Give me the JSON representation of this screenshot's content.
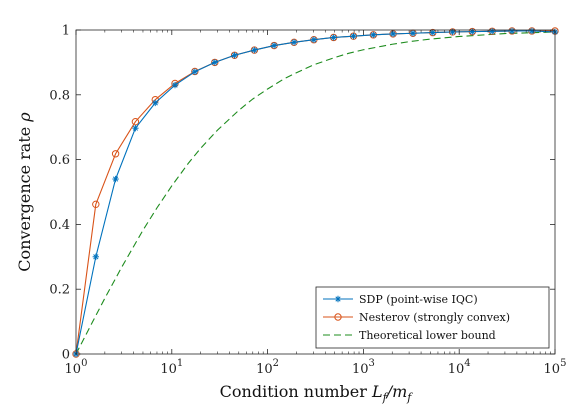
{
  "chart_data": {
    "type": "line",
    "xlabel_text": "Condition number ",
    "xlabel_math": "L",
    "xlabel_sub1": "f",
    "xlabel_slash": "/m",
    "xlabel_sub2": "f",
    "ylabel_text": "Convergence rate ",
    "ylabel_math": "ρ",
    "x_scale": "log",
    "xlim": [
      1,
      100000
    ],
    "ylim": [
      0,
      1
    ],
    "x_ticks": [
      {
        "value": 1,
        "base": "10",
        "exp": "0"
      },
      {
        "value": 10,
        "base": "10",
        "exp": "1"
      },
      {
        "value": 100,
        "base": "10",
        "exp": "2"
      },
      {
        "value": 1000,
        "base": "10",
        "exp": "3"
      },
      {
        "value": 10000,
        "base": "10",
        "exp": "4"
      },
      {
        "value": 100000,
        "base": "10",
        "exp": "5"
      }
    ],
    "y_ticks": [
      {
        "value": 0,
        "label": "0"
      },
      {
        "value": 0.2,
        "label": "0.2"
      },
      {
        "value": 0.4,
        "label": "0.4"
      },
      {
        "value": 0.6,
        "label": "0.6"
      },
      {
        "value": 0.8,
        "label": "0.8"
      },
      {
        "value": 1,
        "label": "1"
      }
    ],
    "legend_position": "bottom-right",
    "grid": false,
    "series": [
      {
        "name": "SDP (point-wise IQC)",
        "color": "#0072BD",
        "marker": "asterisk",
        "line": "solid",
        "x": [
          1,
          1.61,
          2.59,
          4.17,
          6.72,
          10.8,
          17.4,
          28.1,
          45.2,
          72.8,
          117,
          189,
          304,
          489,
          788,
          1270,
          2040,
          3290,
          5300,
          8530,
          13700,
          22100,
          35600,
          57400,
          100000
        ],
        "y": [
          0,
          0.3,
          0.54,
          0.697,
          0.775,
          0.83,
          0.871,
          0.9,
          0.922,
          0.938,
          0.952,
          0.962,
          0.97,
          0.977,
          0.981,
          0.985,
          0.988,
          0.99,
          0.992,
          0.994,
          0.995,
          0.996,
          0.997,
          0.997,
          0.994
        ]
      },
      {
        "name": "Nesterov (strongly convex)",
        "color": "#D95319",
        "marker": "circle",
        "line": "solid",
        "x": [
          1,
          1.61,
          2.59,
          4.17,
          6.72,
          10.8,
          17.4,
          28.1,
          45.2,
          72.8,
          117,
          189,
          304,
          489,
          788,
          1270,
          2040,
          3290,
          5300,
          8530,
          13700,
          22100,
          35600,
          57400,
          100000
        ],
        "y": [
          0,
          0.462,
          0.618,
          0.717,
          0.785,
          0.835,
          0.872,
          0.9,
          0.922,
          0.938,
          0.952,
          0.962,
          0.97,
          0.977,
          0.981,
          0.985,
          0.988,
          0.99,
          0.992,
          0.994,
          0.995,
          0.996,
          0.997,
          0.997,
          0.997
        ]
      },
      {
        "name": "Theoretical lower bound",
        "color": "#1E8C1E",
        "marker": "none",
        "line": "dashed",
        "x": [
          1,
          1.5,
          2,
          3,
          5,
          7,
          10,
          15,
          20,
          30,
          50,
          70,
          100,
          150,
          200,
          300,
          500,
          700,
          1000,
          2000,
          3000,
          5000,
          10000,
          30000,
          100000
        ],
        "y": [
          0,
          0.101,
          0.172,
          0.268,
          0.382,
          0.451,
          0.519,
          0.59,
          0.635,
          0.691,
          0.752,
          0.787,
          0.818,
          0.85,
          0.868,
          0.892,
          0.915,
          0.928,
          0.939,
          0.956,
          0.964,
          0.972,
          0.98,
          0.989,
          0.994
        ]
      }
    ]
  }
}
